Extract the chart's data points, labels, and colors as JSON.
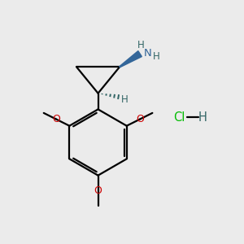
{
  "bg_color": "#ebebeb",
  "bond_color": "#000000",
  "n_color": "#336699",
  "o_color": "#cc0000",
  "cl_color": "#00bb00",
  "h_color": "#336666",
  "line_width": 1.6,
  "fig_width": 3.0,
  "fig_height": 3.0,
  "dpi": 100,
  "xlim": [
    0,
    10
  ],
  "ylim": [
    0,
    10
  ]
}
